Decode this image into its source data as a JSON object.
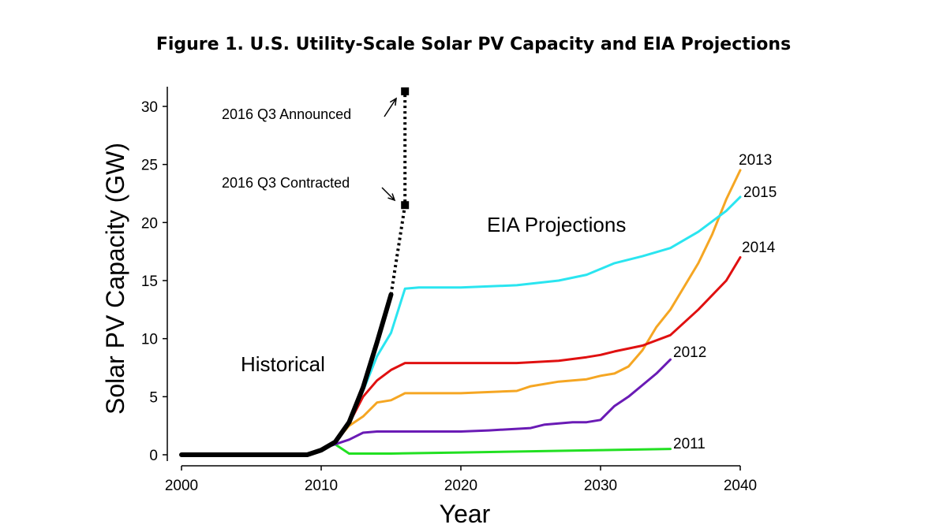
{
  "chart_data": {
    "type": "line",
    "title": "Figure 1. U.S. Utility-Scale Solar PV Capacity and EIA Projections",
    "xlabel": "Year",
    "ylabel": "Solar PV Capacity (GW)",
    "xlim": [
      2000,
      2040
    ],
    "ylim": [
      0,
      31
    ],
    "xticks": [
      2000,
      2010,
      2020,
      2030,
      2040
    ],
    "yticks": [
      0,
      5,
      10,
      15,
      20,
      25,
      30
    ],
    "grid": false,
    "annotations": {
      "historical": "Historical",
      "eia": "EIA Projections",
      "announced": "2016 Q3 Announced",
      "contracted": "2016 Q3 Contracted"
    },
    "series": [
      {
        "name": "2011",
        "color": "#22e022",
        "width": 3,
        "points": [
          [
            2010,
            0.5
          ],
          [
            2011,
            0.9
          ],
          [
            2012,
            0.1
          ],
          [
            2015,
            0.1
          ],
          [
            2020,
            0.2
          ],
          [
            2025,
            0.3
          ],
          [
            2030,
            0.4
          ],
          [
            2035,
            0.5
          ]
        ]
      },
      {
        "name": "2012",
        "color": "#6a1bb5",
        "width": 3,
        "points": [
          [
            2010,
            0.5
          ],
          [
            2011,
            0.9
          ],
          [
            2012,
            1.3
          ],
          [
            2013,
            1.9
          ],
          [
            2014,
            2.0
          ],
          [
            2020,
            2.0
          ],
          [
            2022,
            2.1
          ],
          [
            2025,
            2.3
          ],
          [
            2026,
            2.6
          ],
          [
            2028,
            2.8
          ],
          [
            2029,
            2.8
          ],
          [
            2030,
            3.0
          ],
          [
            2031,
            4.2
          ],
          [
            2032,
            5.0
          ],
          [
            2033,
            6.0
          ],
          [
            2034,
            7.0
          ],
          [
            2035,
            8.2
          ]
        ]
      },
      {
        "name": "2013",
        "color": "#f5a623",
        "width": 3,
        "points": [
          [
            2010,
            0.5
          ],
          [
            2011,
            1.1
          ],
          [
            2012,
            2.5
          ],
          [
            2013,
            3.3
          ],
          [
            2014,
            4.5
          ],
          [
            2015,
            4.7
          ],
          [
            2016,
            5.3
          ],
          [
            2017,
            5.3
          ],
          [
            2020,
            5.3
          ],
          [
            2024,
            5.5
          ],
          [
            2025,
            5.9
          ],
          [
            2027,
            6.3
          ],
          [
            2029,
            6.5
          ],
          [
            2030,
            6.8
          ],
          [
            2031,
            7.0
          ],
          [
            2032,
            7.6
          ],
          [
            2033,
            9.0
          ],
          [
            2034,
            11.0
          ],
          [
            2035,
            12.5
          ],
          [
            2036,
            14.5
          ],
          [
            2037,
            16.5
          ],
          [
            2038,
            19.0
          ],
          [
            2039,
            22.0
          ],
          [
            2040,
            24.5
          ]
        ]
      },
      {
        "name": "2014",
        "color": "#e01010",
        "width": 3,
        "points": [
          [
            2010,
            0.5
          ],
          [
            2011,
            1.1
          ],
          [
            2012,
            2.7
          ],
          [
            2013,
            5.0
          ],
          [
            2014,
            6.4
          ],
          [
            2015,
            7.3
          ],
          [
            2016,
            7.9
          ],
          [
            2017,
            7.9
          ],
          [
            2020,
            7.9
          ],
          [
            2024,
            7.9
          ],
          [
            2027,
            8.1
          ],
          [
            2029,
            8.4
          ],
          [
            2030,
            8.6
          ],
          [
            2031,
            8.9
          ],
          [
            2033,
            9.4
          ],
          [
            2035,
            10.3
          ],
          [
            2037,
            12.5
          ],
          [
            2039,
            15.0
          ],
          [
            2040,
            17.0
          ]
        ]
      },
      {
        "name": "2015",
        "color": "#2ae5f0",
        "width": 3,
        "points": [
          [
            2010,
            0.5
          ],
          [
            2011,
            1.1
          ],
          [
            2012,
            2.7
          ],
          [
            2013,
            5.5
          ],
          [
            2014,
            8.5
          ],
          [
            2015,
            10.5
          ],
          [
            2016,
            14.3
          ],
          [
            2017,
            14.4
          ],
          [
            2020,
            14.4
          ],
          [
            2024,
            14.6
          ],
          [
            2027,
            15.0
          ],
          [
            2029,
            15.5
          ],
          [
            2030,
            16.0
          ],
          [
            2031,
            16.5
          ],
          [
            2033,
            17.1
          ],
          [
            2035,
            17.8
          ],
          [
            2037,
            19.2
          ],
          [
            2039,
            21.0
          ],
          [
            2040,
            22.2
          ]
        ]
      },
      {
        "name": "Historical",
        "color": "#000000",
        "width": 6,
        "label": false,
        "points": [
          [
            2000,
            0
          ],
          [
            2002,
            0
          ],
          [
            2004,
            0
          ],
          [
            2006,
            0
          ],
          [
            2008,
            0
          ],
          [
            2009,
            0
          ],
          [
            2010,
            0.4
          ],
          [
            2011,
            1.1
          ],
          [
            2012,
            2.8
          ],
          [
            2013,
            5.8
          ],
          [
            2014,
            9.7
          ],
          [
            2015,
            13.8
          ]
        ]
      }
    ],
    "projections_dotted": {
      "color": "#000000",
      "points": [
        [
          2015,
          13.8
        ],
        [
          2016,
          21.5
        ],
        [
          2016,
          31.3
        ]
      ]
    },
    "markers": [
      {
        "name": "announced",
        "x": 2016,
        "y": 31.3
      },
      {
        "name": "contracted",
        "x": 2016,
        "y": 21.5
      }
    ]
  }
}
